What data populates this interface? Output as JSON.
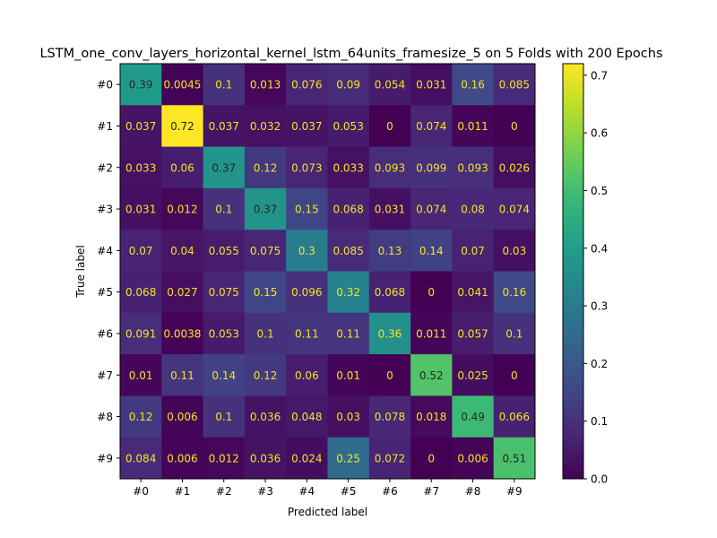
{
  "chart_data": {
    "type": "heatmap",
    "title": "LSTM_one_conv_layers_horizontal_kernel_lstm_64units_framesize_5 on 5 Folds with 200 Epochs",
    "xlabel": "Predicted label",
    "ylabel": "True label",
    "x_categories": [
      "#0",
      "#1",
      "#2",
      "#3",
      "#4",
      "#5",
      "#6",
      "#7",
      "#8",
      "#9"
    ],
    "y_categories": [
      "#0",
      "#1",
      "#2",
      "#3",
      "#4",
      "#5",
      "#6",
      "#7",
      "#8",
      "#9"
    ],
    "values": [
      [
        "0.39",
        "0.0045",
        "0.1",
        "0.013",
        "0.076",
        "0.09",
        "0.054",
        "0.031",
        "0.16",
        "0.085"
      ],
      [
        "0.037",
        "0.72",
        "0.037",
        "0.032",
        "0.037",
        "0.053",
        "0",
        "0.074",
        "0.011",
        "0"
      ],
      [
        "0.033",
        "0.06",
        "0.37",
        "0.12",
        "0.073",
        "0.033",
        "0.093",
        "0.099",
        "0.093",
        "0.026"
      ],
      [
        "0.031",
        "0.012",
        "0.1",
        "0.37",
        "0.15",
        "0.068",
        "0.031",
        "0.074",
        "0.08",
        "0.074"
      ],
      [
        "0.07",
        "0.04",
        "0.055",
        "0.075",
        "0.3",
        "0.085",
        "0.13",
        "0.14",
        "0.07",
        "0.03"
      ],
      [
        "0.068",
        "0.027",
        "0.075",
        "0.15",
        "0.096",
        "0.32",
        "0.068",
        "0",
        "0.041",
        "0.16"
      ],
      [
        "0.091",
        "0.0038",
        "0.053",
        "0.1",
        "0.11",
        "0.11",
        "0.36",
        "0.011",
        "0.057",
        "0.1"
      ],
      [
        "0.01",
        "0.11",
        "0.14",
        "0.12",
        "0.06",
        "0.01",
        "0",
        "0.52",
        "0.025",
        "0"
      ],
      [
        "0.12",
        "0.006",
        "0.1",
        "0.036",
        "0.048",
        "0.03",
        "0.078",
        "0.018",
        "0.49",
        "0.066"
      ],
      [
        "0.084",
        "0.006",
        "0.012",
        "0.036",
        "0.024",
        "0.25",
        "0.072",
        "0",
        "0.006",
        "0.51"
      ]
    ],
    "colormap": "viridis",
    "colorbar": {
      "range": [
        0,
        0.72
      ],
      "ticks": [
        "0.0",
        "0.1",
        "0.2",
        "0.3",
        "0.4",
        "0.5",
        "0.6",
        "0.7"
      ]
    }
  }
}
